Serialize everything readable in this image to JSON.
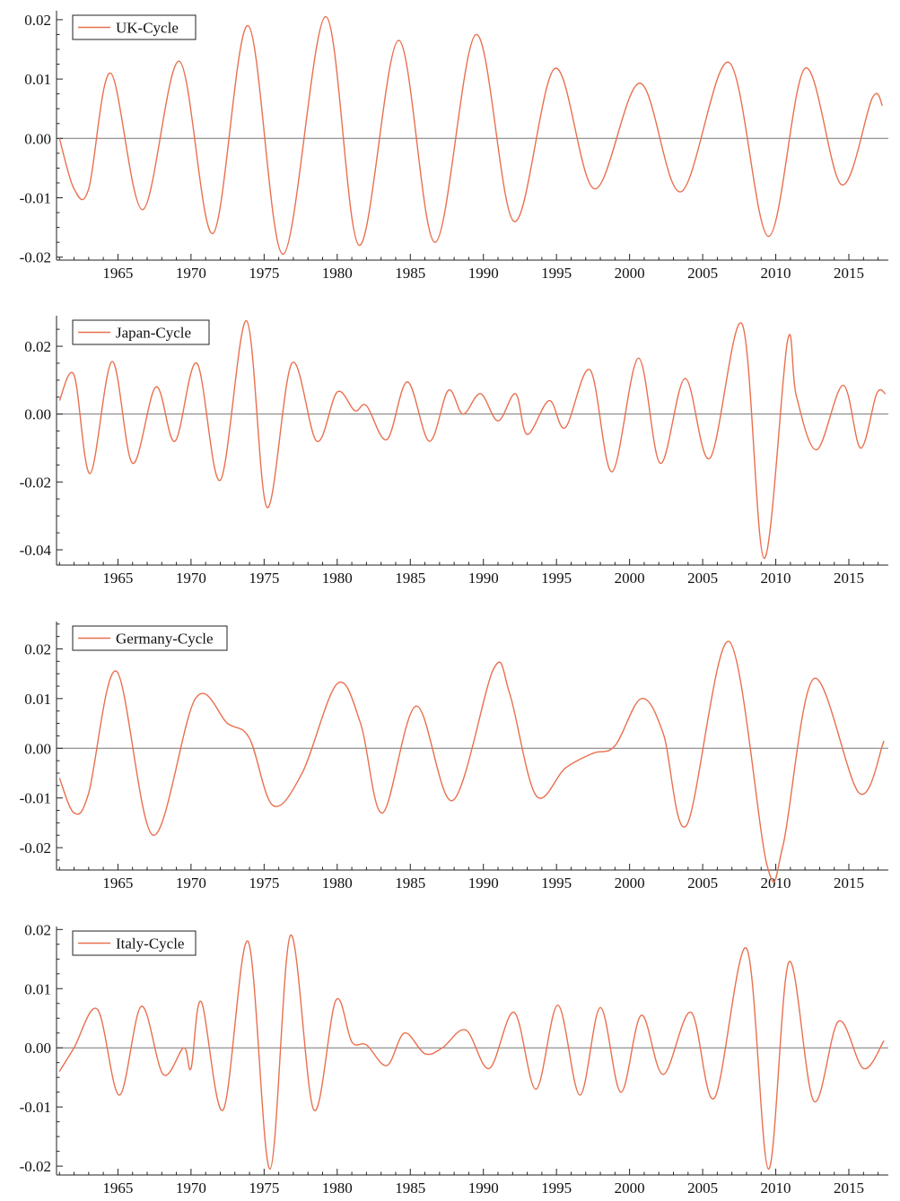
{
  "chart_data": [
    {
      "type": "line",
      "title": "",
      "xlabel": "",
      "ylabel": "",
      "xlim": [
        1960.8,
        2017.7
      ],
      "ylim": [
        -0.0205,
        0.0215
      ],
      "x_ticks": [
        1965,
        1970,
        1975,
        1980,
        1985,
        1990,
        1995,
        2000,
        2005,
        2010,
        2015
      ],
      "x_tick_labels": [
        "1965",
        "1970",
        "1975",
        "1980",
        "1985",
        "1990",
        "1995",
        "2000",
        "2005",
        "2010",
        "2015"
      ],
      "y_ticks": [
        0.02,
        0.01,
        0.0,
        -0.01,
        -0.02
      ],
      "y_tick_labels": [
        "0.02",
        "0.01",
        "0.00",
        "-0.01",
        "-0.02"
      ],
      "zero_line": true,
      "grid": false,
      "legend_position": "top-left",
      "color": "#e8704f",
      "series": [
        {
          "name": "UK-Cycle",
          "x": [
            1961.0,
            1962.0,
            1963.0,
            1964.5,
            1966.7,
            1969.2,
            1971.5,
            1973.9,
            1976.3,
            1979.2,
            1981.5,
            1984.2,
            1986.7,
            1989.5,
            1992.1,
            1994.9,
            1997.6,
            2000.7,
            2003.5,
            2006.8,
            2009.5,
            2012.0,
            2014.5,
            2016.6,
            2017.3
          ],
          "values": [
            0.0,
            -0.0085,
            -0.0085,
            0.011,
            -0.012,
            0.013,
            -0.016,
            0.019,
            -0.0195,
            0.0205,
            -0.018,
            0.0165,
            -0.0175,
            0.0175,
            -0.014,
            0.0118,
            -0.0085,
            0.0093,
            -0.009,
            0.0128,
            -0.0165,
            0.0118,
            -0.0078,
            0.0068,
            0.0055
          ]
        }
      ]
    },
    {
      "type": "line",
      "title": "",
      "xlabel": "",
      "ylabel": "",
      "xlim": [
        1960.8,
        2017.7
      ],
      "ylim": [
        -0.0445,
        0.029
      ],
      "x_ticks": [
        1965,
        1970,
        1975,
        1980,
        1985,
        1990,
        1995,
        2000,
        2005,
        2010,
        2015
      ],
      "x_tick_labels": [
        "1965",
        "1970",
        "1975",
        "1980",
        "1985",
        "1990",
        "1995",
        "2000",
        "2005",
        "2010",
        "2015"
      ],
      "y_ticks": [
        0.02,
        0.0,
        -0.02,
        -0.04
      ],
      "y_tick_labels": [
        "0.02",
        "0.00",
        "-0.02",
        "-0.04"
      ],
      "zero_line": true,
      "grid": false,
      "legend_position": "top-left",
      "color": "#e8704f",
      "series": [
        {
          "name": "Japan-Cycle",
          "x": [
            1961.0,
            1962.0,
            1963.1,
            1964.6,
            1966.0,
            1967.6,
            1968.9,
            1970.4,
            1972.0,
            1973.8,
            1975.2,
            1976.9,
            1978.6,
            1980.0,
            1981.2,
            1982.0,
            1983.4,
            1984.8,
            1986.3,
            1987.6,
            1988.6,
            1989.8,
            1991.0,
            1992.2,
            1993.0,
            1994.5,
            1995.6,
            1997.3,
            1998.8,
            2000.6,
            2002.1,
            2003.8,
            2005.5,
            2007.7,
            2009.2,
            2010.8,
            2011.4,
            2012.8,
            2014.6,
            2015.8,
            2016.9,
            2017.5
          ],
          "values": [
            0.004,
            0.0115,
            -0.0175,
            0.0155,
            -0.0145,
            0.008,
            -0.008,
            0.015,
            -0.0195,
            0.0275,
            -0.0275,
            0.015,
            -0.008,
            0.0065,
            0.001,
            0.0025,
            -0.0075,
            0.0095,
            -0.008,
            0.007,
            0.0,
            0.006,
            -0.002,
            0.006,
            -0.006,
            0.004,
            -0.004,
            0.013,
            -0.017,
            0.0165,
            -0.0145,
            0.0105,
            -0.013,
            0.0265,
            -0.0425,
            0.0215,
            0.0055,
            -0.0105,
            0.0085,
            -0.01,
            0.006,
            0.006
          ]
        }
      ]
    },
    {
      "type": "line",
      "title": "",
      "xlabel": "",
      "ylabel": "",
      "xlim": [
        1960.8,
        2017.7
      ],
      "ylim": [
        -0.0245,
        0.0255
      ],
      "x_ticks": [
        1965,
        1970,
        1975,
        1980,
        1985,
        1990,
        1995,
        2000,
        2005,
        2010,
        2015
      ],
      "x_tick_labels": [
        "1965",
        "1970",
        "1975",
        "1980",
        "1985",
        "1990",
        "1995",
        "2000",
        "2005",
        "2010",
        "2015"
      ],
      "y_ticks": [
        0.02,
        0.01,
        0.0,
        -0.01,
        -0.02
      ],
      "y_tick_labels": [
        "0.02",
        "0.01",
        "0.00",
        "-0.01",
        "-0.02"
      ],
      "zero_line": true,
      "grid": false,
      "legend_position": "top-left",
      "color": "#e8704f",
      "series": [
        {
          "name": "Germany-Cycle",
          "x": [
            1961.0,
            1962.0,
            1963.0,
            1964.9,
            1967.4,
            1970.3,
            1972.5,
            1974.0,
            1975.6,
            1977.6,
            1980.0,
            1981.6,
            1983.1,
            1985.4,
            1987.9,
            1990.7,
            1991.8,
            1993.6,
            1995.6,
            1997.5,
            1999.0,
            2000.8,
            2002.3,
            2003.9,
            2006.8,
            2009.4,
            2010.5,
            2012.6,
            2015.7,
            2017.4
          ],
          "values": [
            -0.006,
            -0.013,
            -0.009,
            0.0155,
            -0.0175,
            0.01,
            0.005,
            0.002,
            -0.0115,
            -0.005,
            0.013,
            0.005,
            -0.013,
            0.0085,
            -0.0105,
            0.016,
            0.011,
            -0.0095,
            -0.004,
            -0.001,
            0.0005,
            0.01,
            0.003,
            -0.0155,
            0.0215,
            -0.0235,
            -0.0195,
            0.014,
            -0.009,
            0.0015
          ]
        }
      ]
    },
    {
      "type": "line",
      "title": "",
      "xlabel": "",
      "ylabel": "",
      "xlim": [
        1960.8,
        2017.7
      ],
      "ylim": [
        -0.0215,
        0.0205
      ],
      "x_ticks": [
        1965,
        1970,
        1975,
        1980,
        1985,
        1990,
        1995,
        2000,
        2005,
        2010,
        2015
      ],
      "x_tick_labels": [
        "1965",
        "1970",
        "1975",
        "1980",
        "1985",
        "1990",
        "1995",
        "2000",
        "2005",
        "2010",
        "2015"
      ],
      "y_ticks": [
        0.02,
        0.01,
        0.0,
        -0.01,
        -0.02
      ],
      "y_tick_labels": [
        "0.02",
        "0.01",
        "0.00",
        "-0.01",
        "-0.02"
      ],
      "zero_line": true,
      "grid": false,
      "legend_position": "top-left",
      "color": "#e8704f",
      "series": [
        {
          "name": "Italy-Cycle",
          "x": [
            1961.0,
            1962.0,
            1963.6,
            1965.1,
            1966.6,
            1968.1,
            1969.5,
            1970.0,
            1970.7,
            1972.2,
            1973.9,
            1975.4,
            1976.8,
            1978.4,
            1979.9,
            1981.0,
            1982.0,
            1983.4,
            1984.6,
            1986.0,
            1987.2,
            1988.8,
            1990.4,
            1992.1,
            1993.6,
            1995.1,
            1996.6,
            1998.0,
            1999.4,
            2000.8,
            2002.3,
            2004.2,
            2005.8,
            2008.0,
            2009.5,
            2010.9,
            2012.6,
            2014.3,
            2016.0,
            2017.4
          ],
          "values": [
            -0.004,
            0.0,
            0.0065,
            -0.008,
            0.007,
            -0.0045,
            0.0,
            -0.0035,
            0.0078,
            -0.0105,
            0.018,
            -0.0205,
            0.019,
            -0.0105,
            0.008,
            0.001,
            0.0005,
            -0.003,
            0.0025,
            -0.001,
            0.0,
            0.003,
            -0.0035,
            0.006,
            -0.007,
            0.0072,
            -0.008,
            0.0068,
            -0.0075,
            0.0055,
            -0.0045,
            0.006,
            -0.0085,
            0.0168,
            -0.0205,
            0.0145,
            -0.009,
            0.0045,
            -0.0035,
            0.0012
          ]
        }
      ]
    }
  ]
}
